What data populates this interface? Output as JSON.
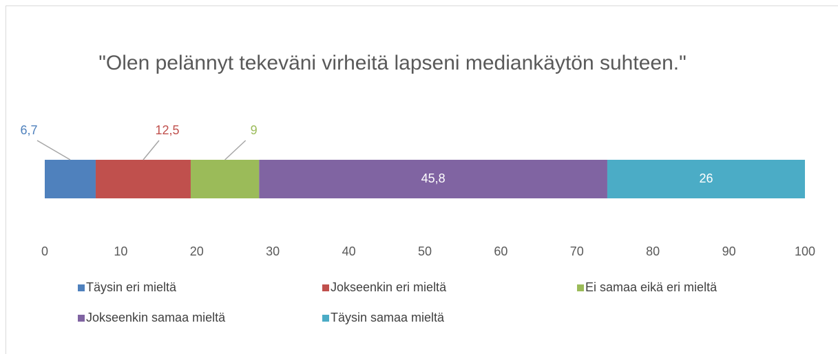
{
  "chart_data": {
    "type": "stacked_bar_horizontal",
    "title": "\"Olen pelännyt tekeväni virheitä lapseni mediankäytön suhteen.\"",
    "series": [
      {
        "name": "Täysin eri mieltä",
        "color": "#4f81bd",
        "values": [
          6.7
        ],
        "value_labels": [
          "6,7"
        ]
      },
      {
        "name": "Jokseenkin eri mieltä",
        "color": "#c0504d",
        "values": [
          12.5
        ],
        "value_labels": [
          "12,5"
        ]
      },
      {
        "name": "Ei samaa eikä eri mieltä",
        "color": "#9bbb59",
        "values": [
          9
        ]
      },
      {
        "name": "Jokseenkin samaa mieltä",
        "color": "#8064a2",
        "values": [
          45.8
        ],
        "value_labels": [
          "45,8"
        ]
      },
      {
        "name": "Täysin samaa mieltä",
        "color": "#4bacc6",
        "values": [
          26
        ]
      }
    ],
    "xlim": [
      0,
      100
    ],
    "xticks": [
      0,
      10,
      20,
      30,
      40,
      50,
      60,
      70,
      80,
      90,
      100
    ],
    "grid": false,
    "legend": "bottom"
  }
}
